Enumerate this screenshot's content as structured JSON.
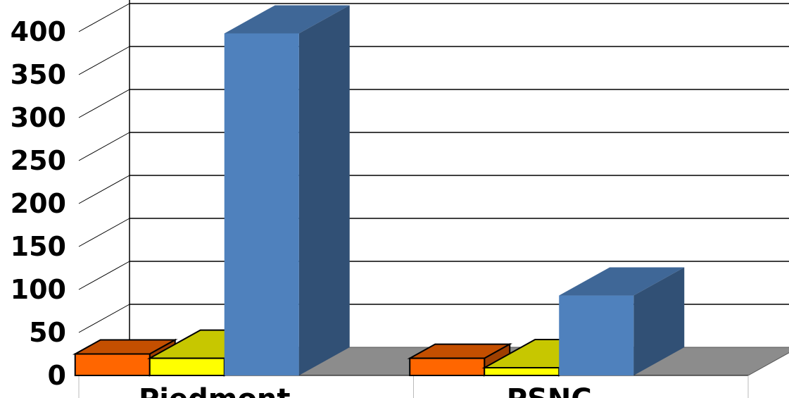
{
  "chart_data": {
    "type": "bar",
    "categories": [
      "Piedmont",
      "PSNC"
    ],
    "series": [
      {
        "values": [
          25,
          20
        ],
        "color": "#ff6600"
      },
      {
        "values": [
          20,
          9
        ],
        "color": "#ffff00"
      },
      {
        "values": [
          398,
          93
        ],
        "color": "#4f81bd"
      }
    ],
    "ylim": [
      0,
      400
    ],
    "yticks": [
      "0",
      "50",
      "100",
      "150",
      "200",
      "250",
      "300",
      "350",
      "400"
    ],
    "grid": true,
    "style": "3d-column",
    "floor_color": "#8c8c8c"
  }
}
